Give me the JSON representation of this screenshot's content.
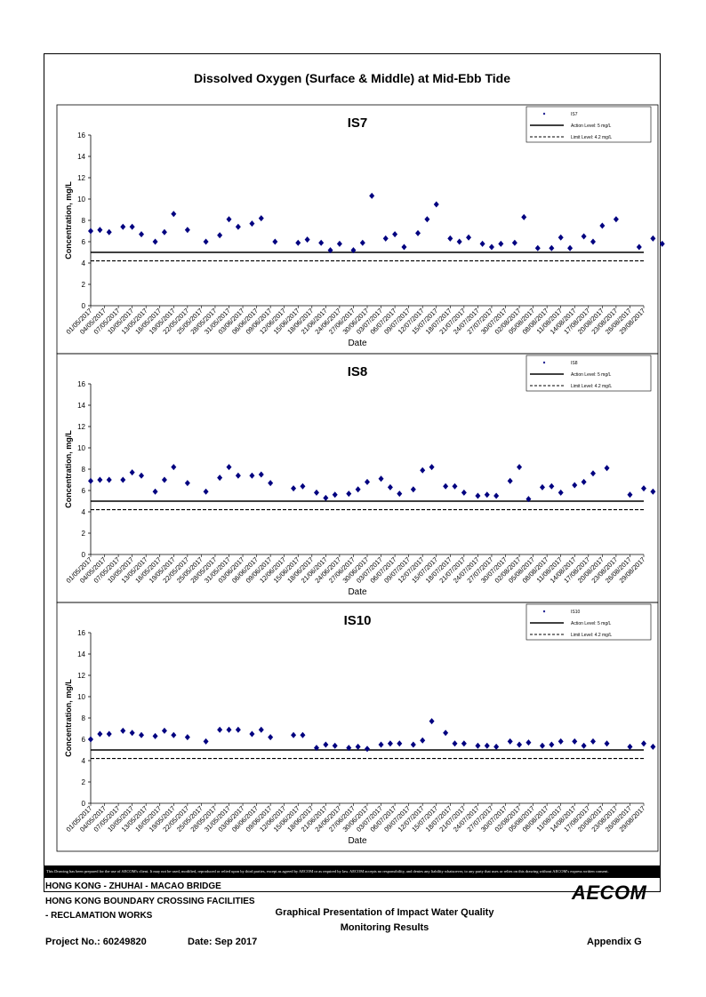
{
  "page": {
    "title": "Dissolved Oxygen (Surface & Middle) at Mid-Ebb Tide",
    "disclaimer": "This Drawing has been prepared for the use of AECOM's client. It may not be used, modified, reproduced or relied upon by third parties, except as agreed by AECOM or as required by law. AECOM accepts no responsibility, and denies any liability whatsoever, to any party that uses or relies on this drawing without AECOM's express written consent.",
    "project_line1": "HONG KONG - ZHUHAI - MACAO BRIDGE",
    "project_line2": "HONG KONG BOUNDARY CROSSING FACILITIES",
    "project_line3": "- RECLAMATION WORKS",
    "drawing_title1": "Graphical Presentation of Impact Water Quality",
    "drawing_title2": "Monitoring Results",
    "project_no": "Project No.: 60249820",
    "date": "Date: Sep 2017",
    "appendix": "Appendix G",
    "logo": "AECOM",
    "marker_color": "#000080"
  },
  "chart_data": [
    {
      "type": "scatter",
      "title": "IS7",
      "xlabel": "Date",
      "ylabel": "Concentration, mg/L",
      "ylim": [
        0,
        16
      ],
      "yticks": [
        0,
        2,
        4,
        6,
        8,
        10,
        12,
        14,
        16
      ],
      "x_range": [
        "01/05/2017",
        "29/08/2017"
      ],
      "x_tick_labels": [
        "01/05/2017",
        "04/05/2017",
        "07/05/2017",
        "10/05/2017",
        "13/05/2017",
        "16/05/2017",
        "19/05/2017",
        "22/05/2017",
        "25/05/2017",
        "28/05/2017",
        "31/05/2017",
        "03/06/2017",
        "06/06/2017",
        "09/06/2017",
        "12/06/2017",
        "15/06/2017",
        "18/06/2017",
        "21/06/2017",
        "24/06/2017",
        "27/06/2017",
        "30/06/2017",
        "03/07/2017",
        "06/07/2017",
        "09/07/2017",
        "12/07/2017",
        "15/07/2017",
        "18/07/2017",
        "21/07/2017",
        "24/07/2017",
        "27/07/2017",
        "30/07/2017",
        "02/08/2017",
        "05/08/2017",
        "08/08/2017",
        "11/08/2017",
        "14/08/2017",
        "17/08/2017",
        "20/08/2017",
        "23/08/2017",
        "26/08/2017",
        "29/08/2017"
      ],
      "legend": {
        "placement": "top-right",
        "entries": [
          "IS7",
          "Action Level: 5 mg/L",
          "Limit Level: 4.2 mg/L"
        ]
      },
      "action_level": 5,
      "limit_level": 4.2,
      "x": [
        "01/05/2017",
        "03/05/2017",
        "05/05/2017",
        "08/05/2017",
        "10/05/2017",
        "12/05/2017",
        "15/05/2017",
        "17/05/2017",
        "19/05/2017",
        "22/05/2017",
        "26/05/2017",
        "29/05/2017",
        "31/05/2017",
        "02/06/2017",
        "05/06/2017",
        "07/06/2017",
        "10/06/2017",
        "15/06/2017",
        "17/06/2017",
        "20/06/2017",
        "22/06/2017",
        "24/06/2017",
        "27/06/2017",
        "29/06/2017",
        "01/07/2017",
        "04/07/2017",
        "06/07/2017",
        "08/07/2017",
        "11/07/2017",
        "13/07/2017",
        "15/07/2017",
        "18/07/2017",
        "20/07/2017",
        "22/07/2017",
        "25/07/2017",
        "27/07/2017",
        "29/07/2017",
        "01/08/2017",
        "03/08/2017",
        "06/08/2017",
        "09/08/2017",
        "11/08/2017",
        "13/08/2017",
        "16/08/2017",
        "18/08/2017",
        "20/08/2017",
        "23/08/2017",
        "28/08/2017",
        "31/08/2017",
        "02/09/2017"
      ],
      "y": [
        7.0,
        7.1,
        6.9,
        7.4,
        7.4,
        6.7,
        6.0,
        6.9,
        8.6,
        7.1,
        6.0,
        6.6,
        8.1,
        7.4,
        7.7,
        8.2,
        6.0,
        5.9,
        6.2,
        5.9,
        5.2,
        5.8,
        5.2,
        5.9,
        10.3,
        6.3,
        6.7,
        5.5,
        6.8,
        8.1,
        9.5,
        6.3,
        6.0,
        6.4,
        5.8,
        5.5,
        5.8,
        5.9,
        8.3,
        5.4,
        5.4,
        6.4,
        5.4,
        6.5,
        6.0,
        7.5,
        8.1,
        5.5,
        6.3,
        5.8
      ]
    },
    {
      "type": "scatter",
      "title": "IS8",
      "xlabel": "Date",
      "ylabel": "Concentration, mg/L",
      "ylim": [
        0,
        16
      ],
      "yticks": [
        0,
        2,
        4,
        6,
        8,
        10,
        12,
        14,
        16
      ],
      "x_range": [
        "01/05/2017",
        "29/08/2017"
      ],
      "x_tick_labels": [
        "01/05/2017",
        "04/05/2017",
        "07/05/2017",
        "10/05/2017",
        "13/05/2017",
        "16/05/2017",
        "19/05/2017",
        "22/05/2017",
        "25/05/2017",
        "28/05/2017",
        "31/05/2017",
        "03/06/2017",
        "06/06/2017",
        "09/06/2017",
        "12/06/2017",
        "15/06/2017",
        "18/06/2017",
        "21/06/2017",
        "24/06/2017",
        "27/06/2017",
        "30/06/2017",
        "03/07/2017",
        "06/07/2017",
        "09/07/2017",
        "12/07/2017",
        "15/07/2017",
        "18/07/2017",
        "21/07/2017",
        "24/07/2017",
        "27/07/2017",
        "30/07/2017",
        "02/08/2017",
        "05/08/2017",
        "08/08/2017",
        "11/08/2017",
        "14/08/2017",
        "17/08/2017",
        "20/08/2017",
        "23/08/2017",
        "26/08/2017",
        "29/08/2017"
      ],
      "legend": {
        "placement": "top-right",
        "entries": [
          "IS8",
          "Action Level: 5 mg/L",
          "Limit Level: 4.2 mg/L"
        ]
      },
      "action_level": 5,
      "limit_level": 4.2,
      "x": [
        "01/05/2017",
        "03/05/2017",
        "05/05/2017",
        "08/05/2017",
        "10/05/2017",
        "12/05/2017",
        "15/05/2017",
        "17/05/2017",
        "19/05/2017",
        "22/05/2017",
        "26/05/2017",
        "29/05/2017",
        "31/05/2017",
        "02/06/2017",
        "05/06/2017",
        "07/06/2017",
        "09/06/2017",
        "14/06/2017",
        "16/06/2017",
        "19/06/2017",
        "21/06/2017",
        "23/06/2017",
        "26/06/2017",
        "28/06/2017",
        "30/06/2017",
        "03/07/2017",
        "05/07/2017",
        "07/07/2017",
        "10/07/2017",
        "12/07/2017",
        "14/07/2017",
        "17/07/2017",
        "19/07/2017",
        "21/07/2017",
        "24/07/2017",
        "26/07/2017",
        "28/07/2017",
        "31/07/2017",
        "02/08/2017",
        "04/08/2017",
        "07/08/2017",
        "09/08/2017",
        "11/08/2017",
        "14/08/2017",
        "16/08/2017",
        "18/08/2017",
        "21/08/2017",
        "26/08/2017",
        "29/08/2017",
        "31/08/2017"
      ],
      "y": [
        6.9,
        7.0,
        7.0,
        7.0,
        7.7,
        7.4,
        5.9,
        7.0,
        8.2,
        6.7,
        5.9,
        7.2,
        8.2,
        7.4,
        7.4,
        7.5,
        6.7,
        6.2,
        6.4,
        5.8,
        5.3,
        5.6,
        5.7,
        6.1,
        6.8,
        7.1,
        6.3,
        5.7,
        6.1,
        7.9,
        8.2,
        6.4,
        6.4,
        5.8,
        5.5,
        5.6,
        5.5,
        6.9,
        8.2,
        5.2,
        6.3,
        6.4,
        5.8,
        6.5,
        6.8,
        7.6,
        8.1,
        5.6,
        6.2,
        5.9
      ]
    },
    {
      "type": "scatter",
      "title": "IS10",
      "xlabel": "Date",
      "ylabel": "Concentration, mg/L",
      "ylim": [
        0,
        16
      ],
      "yticks": [
        0,
        2,
        4,
        6,
        8,
        10,
        12,
        14,
        16
      ],
      "x_range": [
        "01/05/2017",
        "29/08/2017"
      ],
      "x_tick_labels": [
        "01/05/2017",
        "04/05/2017",
        "07/05/2017",
        "10/05/2017",
        "13/05/2017",
        "16/05/2017",
        "19/05/2017",
        "22/05/2017",
        "25/05/2017",
        "28/05/2017",
        "31/05/2017",
        "03/06/2017",
        "06/06/2017",
        "09/06/2017",
        "12/06/2017",
        "15/06/2017",
        "18/06/2017",
        "21/06/2017",
        "24/06/2017",
        "27/06/2017",
        "30/06/2017",
        "03/07/2017",
        "06/07/2017",
        "09/07/2017",
        "12/07/2017",
        "15/07/2017",
        "18/07/2017",
        "21/07/2017",
        "24/07/2017",
        "27/07/2017",
        "30/07/2017",
        "02/08/2017",
        "05/08/2017",
        "08/08/2017",
        "11/08/2017",
        "14/08/2017",
        "17/08/2017",
        "20/08/2017",
        "23/08/2017",
        "26/08/2017",
        "29/08/2017"
      ],
      "legend": {
        "placement": "top-right",
        "entries": [
          "IS10",
          "Action Level: 5 mg/L",
          "Limit Level: 4.2 mg/L"
        ]
      },
      "action_level": 5,
      "limit_level": 4.2,
      "x": [
        "01/05/2017",
        "03/05/2017",
        "05/05/2017",
        "08/05/2017",
        "10/05/2017",
        "12/05/2017",
        "15/05/2017",
        "17/05/2017",
        "19/05/2017",
        "22/05/2017",
        "26/05/2017",
        "29/05/2017",
        "31/05/2017",
        "02/06/2017",
        "05/06/2017",
        "07/06/2017",
        "09/06/2017",
        "14/06/2017",
        "16/06/2017",
        "19/06/2017",
        "21/06/2017",
        "23/06/2017",
        "26/06/2017",
        "28/06/2017",
        "30/06/2017",
        "03/07/2017",
        "05/07/2017",
        "07/07/2017",
        "10/07/2017",
        "12/07/2017",
        "14/07/2017",
        "17/07/2017",
        "19/07/2017",
        "21/07/2017",
        "24/07/2017",
        "26/07/2017",
        "28/07/2017",
        "31/07/2017",
        "02/08/2017",
        "04/08/2017",
        "07/08/2017",
        "09/08/2017",
        "11/08/2017",
        "14/08/2017",
        "16/08/2017",
        "18/08/2017",
        "21/08/2017",
        "26/08/2017",
        "29/08/2017",
        "31/08/2017"
      ],
      "y": [
        6.0,
        6.5,
        6.5,
        6.8,
        6.6,
        6.4,
        6.3,
        6.8,
        6.4,
        6.2,
        5.8,
        6.9,
        6.9,
        6.9,
        6.5,
        6.9,
        6.2,
        6.4,
        6.4,
        5.2,
        5.5,
        5.4,
        5.2,
        5.3,
        5.1,
        5.5,
        5.6,
        5.6,
        5.5,
        5.9,
        7.7,
        6.6,
        5.6,
        5.6,
        5.4,
        5.4,
        5.3,
        5.8,
        5.5,
        5.7,
        5.4,
        5.5,
        5.8,
        5.8,
        5.4,
        5.8,
        5.6,
        5.3,
        5.6,
        5.3
      ]
    }
  ]
}
